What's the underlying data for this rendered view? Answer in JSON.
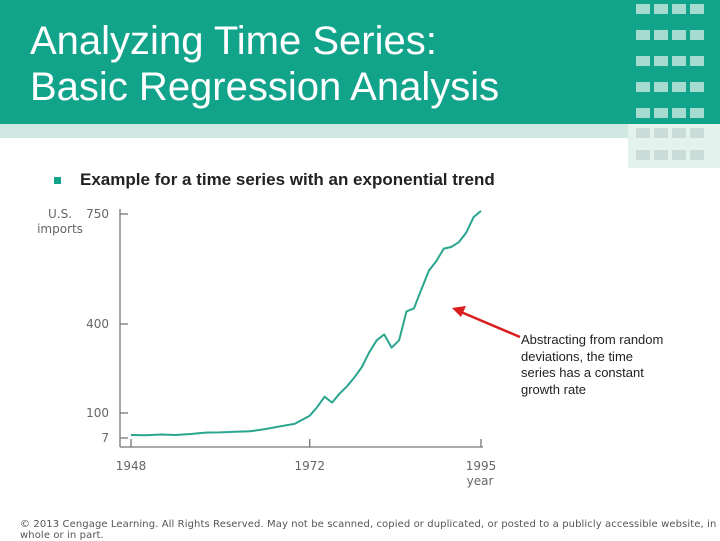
{
  "slide": {
    "title": "Analyzing Time Series:\nBasic Regression Analysis",
    "subtitle": "Example for a time series with an exponential trend",
    "annotation": "Abstracting from random deviations, the time series has a constant growth rate",
    "footer": "© 2013 Cengage Learning. All Rights Reserved. May not be scanned, copied or duplicated, or posted to a publicly accessible website, in whole or in part."
  },
  "colors": {
    "header": "#12a38b",
    "line": "#2aa58e",
    "arrow": "#d81e1e",
    "axis": "#777777"
  },
  "chart_data": {
    "type": "line",
    "ylabel_line1": "U.S.",
    "ylabel_line2": "imports",
    "xlabel": "year",
    "yticks": [
      7,
      100,
      400,
      750
    ],
    "xticks": [
      1948,
      1972,
      1995
    ],
    "ylim": [
      7,
      750
    ],
    "xlim": [
      1948,
      1995
    ],
    "grid": false,
    "series": [
      {
        "x": [
          1948,
          1950,
          1952,
          1954,
          1956,
          1958,
          1960,
          1962,
          1964,
          1966,
          1968,
          1970,
          1972,
          1973,
          1974,
          1975,
          1976,
          1977,
          1978,
          1979,
          1980,
          1981,
          1982,
          1983,
          1984,
          1985,
          1986,
          1987,
          1988,
          1989,
          1990,
          1991,
          1992,
          1993,
          1994,
          1995
        ],
        "values": [
          18,
          17,
          20,
          18,
          22,
          27,
          28,
          30,
          32,
          40,
          50,
          60,
          90,
          120,
          155,
          135,
          165,
          190,
          220,
          255,
          305,
          345,
          365,
          320,
          345,
          440,
          450,
          510,
          570,
          600,
          640,
          645,
          660,
          690,
          740,
          760
        ]
      }
    ]
  }
}
